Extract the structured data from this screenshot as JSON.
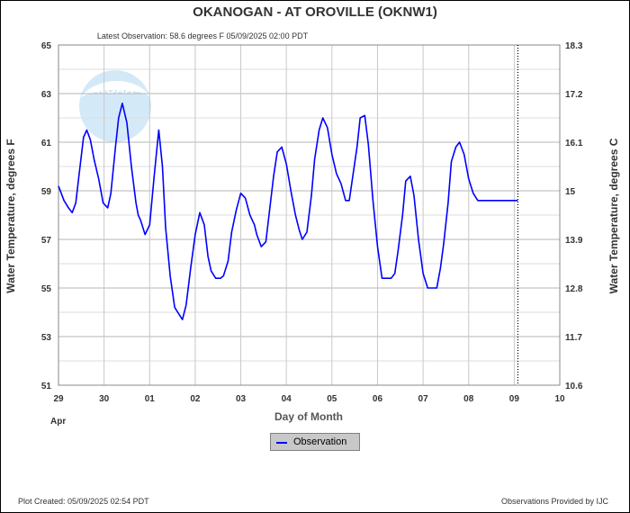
{
  "title": "OKANOGAN - AT OROVILLE  (OKNW1)",
  "subtitle": "Latest Observation: 58.6 degrees F  05/09/2025 02:00 PDT",
  "footer_left": "Plot Created: 05/09/2025 02:54 PDT",
  "footer_right": "Observations Provided by IJC",
  "logo_text": "NOAA",
  "colors": {
    "series": "#0000ff",
    "grid": "#c8c8c8",
    "text": "#333333"
  },
  "chart_data": {
    "type": "line",
    "title": "OKANOGAN - AT OROVILLE  (OKNW1)",
    "xlabel": "Day of Month",
    "ylabel": "Water Temperature, degrees F",
    "y2label": "Water Temperature, degrees C",
    "xlim": [
      0,
      11
    ],
    "ylim": [
      51,
      65
    ],
    "y2lim": [
      10.6,
      18.3
    ],
    "x_ticks": [
      "29",
      "30",
      "01",
      "02",
      "03",
      "04",
      "05",
      "06",
      "07",
      "08",
      "09",
      "10"
    ],
    "x_tick_month": "Apr",
    "y_ticks": [
      51,
      53,
      55,
      57,
      59,
      61,
      63,
      65
    ],
    "y2_ticks": [
      "10.6",
      "11.7",
      "12.8",
      "13.9",
      "15",
      "16.1",
      "17.2",
      "18.3"
    ],
    "grid": true,
    "current_time_marker_x": 10.08,
    "legend": "bottom-center",
    "series": [
      {
        "name": "Observation",
        "color": "#0000ff",
        "x": [
          0,
          0.12,
          0.22,
          0.3,
          0.38,
          0.46,
          0.55,
          0.62,
          0.7,
          0.78,
          0.88,
          0.98,
          1.08,
          1.15,
          1.25,
          1.32,
          1.4,
          1.5,
          1.6,
          1.7,
          1.75,
          1.8,
          1.9,
          2.0,
          2.1,
          2.2,
          2.28,
          2.35,
          2.45,
          2.55,
          2.65,
          2.72,
          2.8,
          2.9,
          3.0,
          3.1,
          3.2,
          3.28,
          3.35,
          3.45,
          3.55,
          3.62,
          3.72,
          3.8,
          3.9,
          4.0,
          4.1,
          4.2,
          4.3,
          4.35,
          4.45,
          4.55,
          4.62,
          4.72,
          4.8,
          4.9,
          5.0,
          5.1,
          5.2,
          5.28,
          5.35,
          5.45,
          5.55,
          5.62,
          5.72,
          5.8,
          5.9,
          6.0,
          6.1,
          6.2,
          6.3,
          6.38,
          6.45,
          6.55,
          6.62,
          6.72,
          6.8,
          6.9,
          7.0,
          7.1,
          7.2,
          7.3,
          7.38,
          7.45,
          7.55,
          7.62,
          7.72,
          7.8,
          7.9,
          8.0,
          8.1,
          8.2,
          8.3,
          8.38,
          8.45,
          8.55,
          8.62,
          8.72,
          8.8,
          8.9,
          9.0,
          9.1,
          9.2,
          9.3,
          9.38,
          9.45,
          9.55,
          9.62,
          9.72,
          9.8,
          9.9,
          10.0,
          10.08
        ],
        "values": [
          59.2,
          58.6,
          58.3,
          58.1,
          58.5,
          59.8,
          61.2,
          61.5,
          61.1,
          60.3,
          59.5,
          58.5,
          58.3,
          58.9,
          60.8,
          62.0,
          62.6,
          61.8,
          60.0,
          58.5,
          58.0,
          57.8,
          57.2,
          57.6,
          59.6,
          61.5,
          60.0,
          57.5,
          55.5,
          54.2,
          53.9,
          53.7,
          54.3,
          55.8,
          57.2,
          58.1,
          57.6,
          56.3,
          55.7,
          55.4,
          55.4,
          55.5,
          56.1,
          57.3,
          58.2,
          58.9,
          58.7,
          58.0,
          57.6,
          57.2,
          56.7,
          56.9,
          58.0,
          59.6,
          60.6,
          60.8,
          60.1,
          59.0,
          58.0,
          57.4,
          57.0,
          57.3,
          58.8,
          60.3,
          61.5,
          62.0,
          61.6,
          60.5,
          59.7,
          59.3,
          58.6,
          58.6,
          59.5,
          60.8,
          62.0,
          62.1,
          60.9,
          58.6,
          56.7,
          55.4,
          55.4,
          55.4,
          55.6,
          56.5,
          58.0,
          59.4,
          59.6,
          58.8,
          57.0,
          55.6,
          55.0,
          55.0,
          55.0,
          55.8,
          56.8,
          58.5,
          60.2,
          60.8,
          61.0,
          60.5,
          59.5,
          58.9,
          58.6,
          58.6,
          58.6,
          58.6,
          58.6,
          58.6,
          58.6,
          58.6,
          58.6,
          58.6,
          58.6
        ]
      }
    ]
  }
}
